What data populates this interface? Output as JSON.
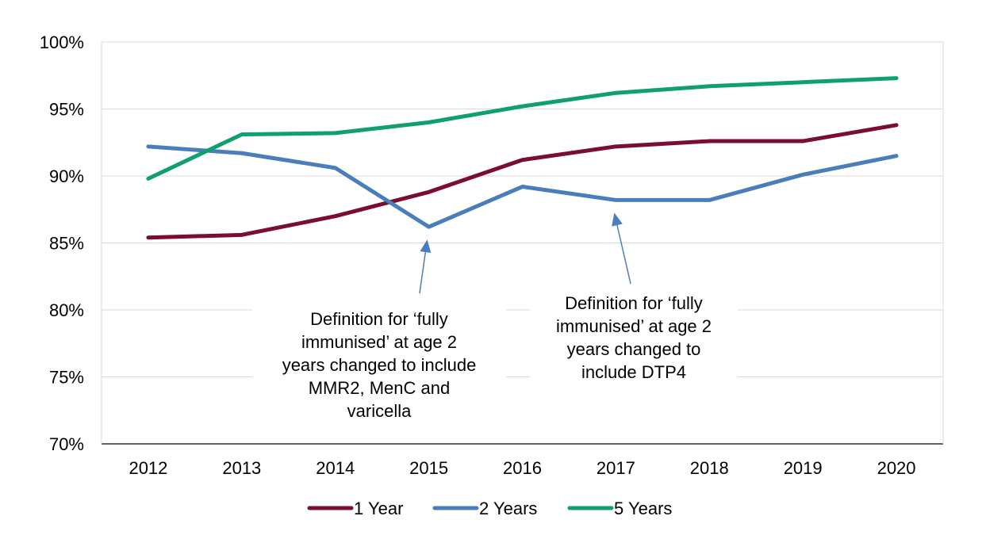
{
  "chart_data": {
    "type": "line",
    "categories": [
      "2012",
      "2013",
      "2014",
      "2015",
      "2016",
      "2017",
      "2018",
      "2019",
      "2020"
    ],
    "series": [
      {
        "name": "1 Year",
        "color": "#7B0D2E",
        "values": [
          85.4,
          85.6,
          87.0,
          88.8,
          91.2,
          92.2,
          92.6,
          92.6,
          93.8
        ]
      },
      {
        "name": "2 Years",
        "color": "#4A7EBB",
        "values": [
          92.2,
          91.7,
          90.6,
          86.2,
          89.2,
          88.2,
          88.2,
          90.1,
          91.5
        ]
      },
      {
        "name": "5 Years",
        "color": "#109F6F",
        "values": [
          89.8,
          93.1,
          93.2,
          94.0,
          95.2,
          96.2,
          96.7,
          97.0,
          97.3
        ]
      }
    ],
    "ylim": [
      70,
      100
    ],
    "ytick_labels": [
      "70%",
      "75%",
      "80%",
      "85%",
      "90%",
      "95%",
      "100%"
    ],
    "yticks": [
      70,
      75,
      80,
      85,
      90,
      95,
      100
    ],
    "grid": true,
    "legend_position": "bottom",
    "annotations": [
      {
        "text": "Definition for ‘fully immunised’ at age 2 years changed to include MMR2, MenC and varicella",
        "points_to": {
          "x": "2015",
          "y": 86.2
        }
      },
      {
        "text": "Definition for ‘fully immunised’ at age 2 years changed to include DTP4",
        "points_to": {
          "x": "2017",
          "y": 88.2
        }
      }
    ],
    "axis_color": "#000000",
    "grid_color": "#D9D9D9"
  }
}
